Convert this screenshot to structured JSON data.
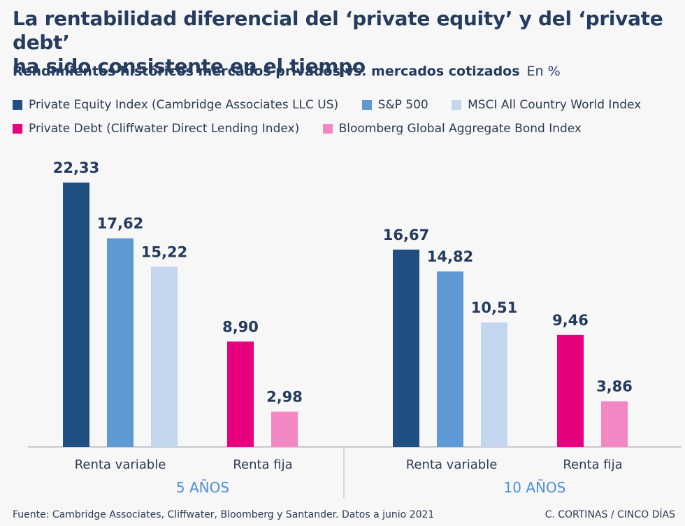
{
  "header": {
    "title_line1": "La rentabilidad diferencial del ‘private equity’ y del ‘private debt’",
    "title_line2": "ha sido consistente en el tiempo",
    "subtitle": "Rendimientos históricos mercados privados vs. mercados cotizados",
    "unit": "En %"
  },
  "colors": {
    "private_equity": "#1f4e82",
    "sp500": "#5f99d3",
    "msci": "#c3d6ee",
    "private_debt": "#e6007e",
    "bloomberg": "#f287c4",
    "text": "#243b5c",
    "period": "#4e8fd0"
  },
  "chart_data": {
    "type": "bar",
    "title": "Rendimientos históricos mercados privados vs. mercados cotizados",
    "unit": "En %",
    "ylim": [
      0,
      22.33
    ],
    "grid": false,
    "legend_position": "top",
    "series": [
      {
        "key": "private_equity",
        "name": "Private Equity Index (Cambridge Associates LLC US)",
        "group": "Renta variable"
      },
      {
        "key": "sp500",
        "name": "S&P 500",
        "group": "Renta variable"
      },
      {
        "key": "msci",
        "name": "MSCI All Country World Index",
        "group": "Renta variable"
      },
      {
        "key": "private_debt",
        "name": "Private Debt (Cliffwater Direct Lending Index)",
        "group": "Renta fija"
      },
      {
        "key": "bloomberg",
        "name": "Bloomberg Global Aggregate Bond Index",
        "group": "Renta fija"
      }
    ],
    "periods": [
      {
        "label": "5 AÑOS",
        "categories": [
          {
            "label": "Renta variable",
            "bars": [
              {
                "series": "private_equity",
                "value": 22.33,
                "label": "22,33"
              },
              {
                "series": "sp500",
                "value": 17.62,
                "label": "17,62"
              },
              {
                "series": "msci",
                "value": 15.22,
                "label": "15,22"
              }
            ]
          },
          {
            "label": "Renta fija",
            "bars": [
              {
                "series": "private_debt",
                "value": 8.9,
                "label": "8,90"
              },
              {
                "series": "bloomberg",
                "value": 2.98,
                "label": "2,98"
              }
            ]
          }
        ]
      },
      {
        "label": "10 AÑOS",
        "categories": [
          {
            "label": "Renta variable",
            "bars": [
              {
                "series": "private_equity",
                "value": 16.67,
                "label": "16,67"
              },
              {
                "series": "sp500",
                "value": 14.82,
                "label": "14,82"
              },
              {
                "series": "msci",
                "value": 10.51,
                "label": "10,51"
              }
            ]
          },
          {
            "label": "Renta fija",
            "bars": [
              {
                "series": "private_debt",
                "value": 9.46,
                "label": "9,46"
              },
              {
                "series": "bloomberg",
                "value": 3.86,
                "label": "3,86"
              }
            ]
          }
        ]
      }
    ]
  },
  "footer": {
    "source": "Fuente: Cambridge Associates, Cliffwater, Bloomberg y Santander. Datos a junio 2021",
    "credit": "C. CORTINAS / CINCO DÍAS"
  }
}
